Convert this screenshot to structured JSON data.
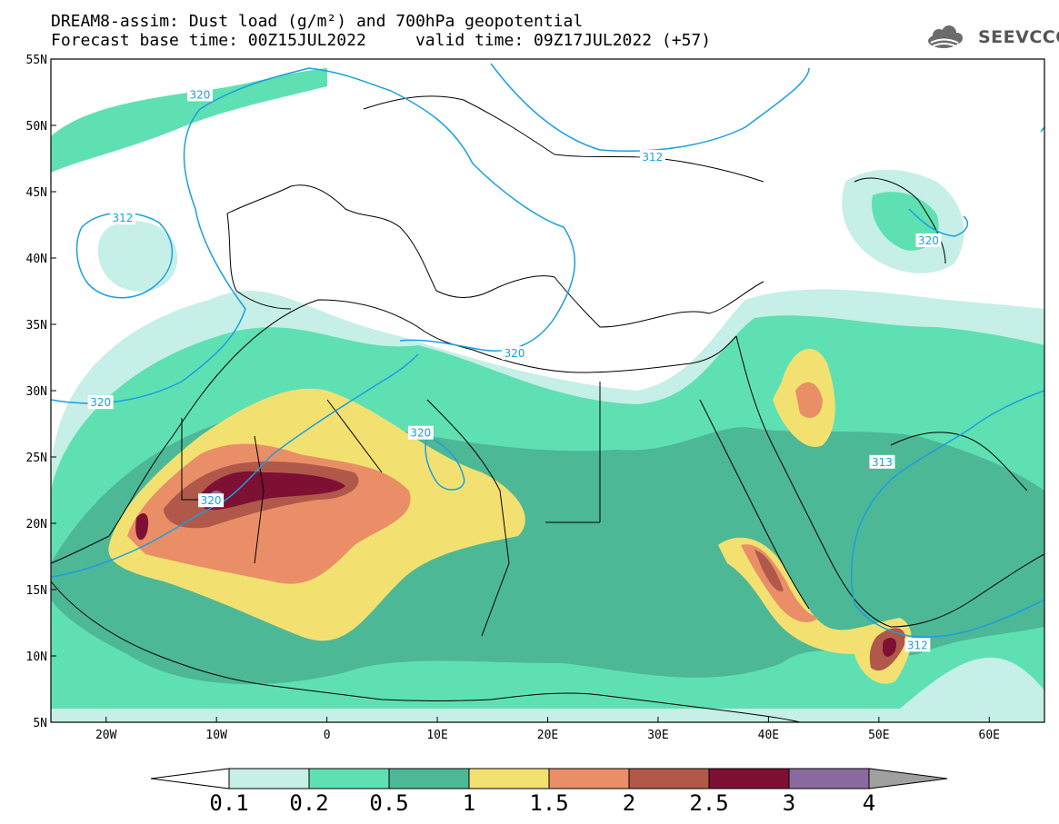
{
  "header": {
    "title_line1": "DREAM8-assim: Dust load (g/m²) and 700hPa geopotential",
    "title_line2": "Forecast base time: 00Z15JUL2022     valid time: 09Z17JUL2022 (+57)"
  },
  "logo": {
    "text": "SEEVCCC",
    "icon": "cloud-icon"
  },
  "map": {
    "lat_ticks": [
      "55N",
      "50N",
      "45N",
      "40N",
      "35N",
      "30N",
      "25N",
      "20N",
      "15N",
      "10N",
      "5N"
    ],
    "lon_ticks": [
      "20W",
      "10W",
      "0",
      "10E",
      "20E",
      "30E",
      "40E",
      "50E",
      "60E"
    ],
    "lon_range": [
      -25,
      65
    ],
    "lat_range": [
      5,
      55
    ],
    "contour_labels": [
      {
        "text": "320",
        "lon": -11.5,
        "lat": 52.3
      },
      {
        "text": "312",
        "lon": -18.5,
        "lat": 43.0
      },
      {
        "text": "320",
        "lon": -20.5,
        "lat": 29.1
      },
      {
        "text": "312",
        "lon": 29.5,
        "lat": 47.6
      },
      {
        "text": "320",
        "lon": 17.0,
        "lat": 32.8
      },
      {
        "text": "320",
        "lon": 8.5,
        "lat": 26.8
      },
      {
        "text": "320",
        "lon": -10.5,
        "lat": 21.7
      },
      {
        "text": "320",
        "lon": 54.5,
        "lat": 41.3
      },
      {
        "text": "313",
        "lon": 50.3,
        "lat": 24.6
      },
      {
        "text": "312",
        "lon": 53.5,
        "lat": 10.8
      }
    ]
  },
  "colorbar": {
    "labels": [
      "0.1",
      "0.2",
      "0.5",
      "1",
      "1.5",
      "2",
      "2.5",
      "3",
      "4"
    ],
    "colors": [
      "#c5efe7",
      "#5fe0b3",
      "#4db896",
      "#f2e171",
      "#e98e66",
      "#b0584a",
      "#7e1034",
      "#8a6a9e",
      "#a0a0a0"
    ]
  },
  "colors": {
    "contour": "#1a9fe0",
    "land_border": "#000000",
    "background": "#ffffff"
  }
}
